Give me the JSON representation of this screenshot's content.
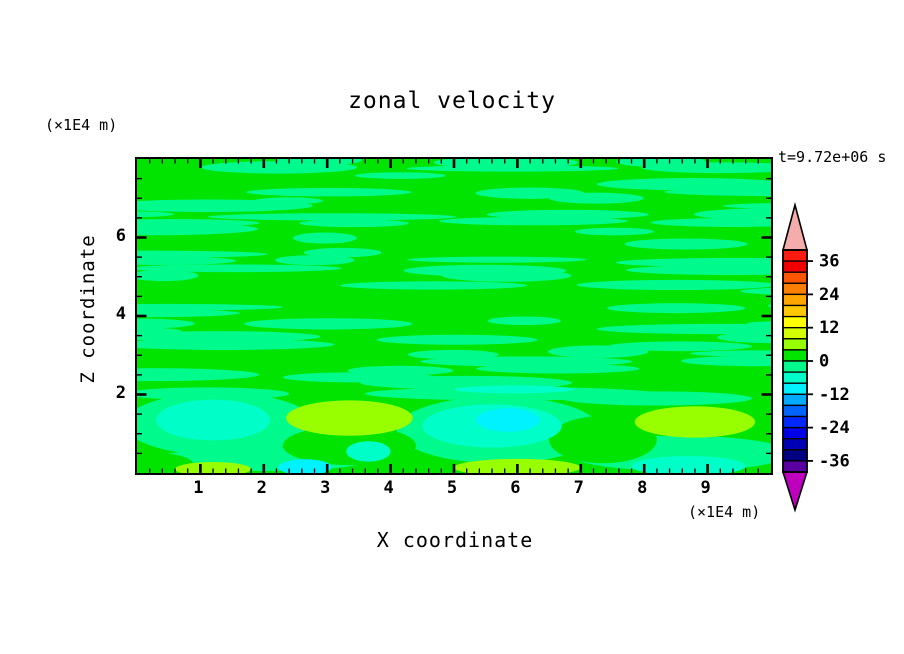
{
  "title": "zonal velocity",
  "timestamp": "t=9.72e+06 s",
  "axes": {
    "x_label": "X coordinate",
    "x_unit": "(×1E4 m)",
    "y_label": "Z coordinate",
    "y_unit": "(×1E4 m)",
    "x_ticks": [
      "1",
      "2",
      "3",
      "4",
      "5",
      "6",
      "7",
      "8",
      "9"
    ],
    "y_ticks": [
      "2",
      "4",
      "6"
    ],
    "x_range": [
      0,
      10
    ],
    "z_range": [
      0,
      8
    ],
    "x_minor_step": 0.2,
    "z_minor_step": 0.5
  },
  "colorbar": {
    "labels": [
      "36",
      "24",
      "12",
      "0",
      "-12",
      "-24",
      "-36"
    ],
    "level_min": -40,
    "level_max": 40,
    "level_step": 4,
    "cell_colors": [
      "#FB1B10",
      "#F00000",
      "#FF5500",
      "#FF8000",
      "#FFA500",
      "#FFC800",
      "#FFFF00",
      "#D4FF00",
      "#98FF00",
      "#00E400",
      "#00FA8C",
      "#00FFC8",
      "#00F2FF",
      "#00AAFF",
      "#0064FF",
      "#0028FF",
      "#0000E8",
      "#0000B4",
      "#000080",
      "#5A00A0"
    ],
    "over_color": "#F5ACAC",
    "under_color": "#BE00BE"
  },
  "chart_data": {
    "type": "heatmap",
    "title": "zonal velocity",
    "xlabel": "X coordinate (×1E4 m)",
    "ylabel": "Z coordinate (×1E4 m)",
    "time_annotation": "t=9.72e+06 s",
    "x_range": [
      0,
      10
    ],
    "z_range": [
      0,
      8
    ],
    "contour_levels": "filled contours every 4 from -40 to 40",
    "field_summary": "Field is dominated by weak values: green (0..4) and mint (-4..0) in thin wavy horizontal streaks above z=2; below z=2 broader anomalies: chartreuse (+4..8) blobs near (3.3,1.4) and (8.8,1.3), turquoise (-8..-4) blobs near (1.2,1.35) and (5.6,1.2) with cyan (-12..-8) core near (5.85,1.35), plus alternating chartreuse/cyan/turquoise strips along the bottom boundary.",
    "palette": {
      "green": "#00E400",
      "mint": "#00FA8C",
      "turquoise": "#00FFC8",
      "cyan": "#00F2FF",
      "chartreuse": "#98FF00"
    },
    "features": [
      {
        "shape": "ellipse",
        "x": 1.3,
        "z": 1.25,
        "rx": 1.5,
        "rz": 0.8,
        "color": "mint"
      },
      {
        "shape": "ellipse",
        "x": 5.7,
        "z": 1.1,
        "rx": 1.6,
        "rz": 0.85,
        "color": "mint"
      },
      {
        "shape": "ellipse",
        "x": 2.0,
        "z": 0.35,
        "rx": 1.7,
        "rz": 0.3,
        "color": "mint"
      },
      {
        "shape": "ellipse",
        "x": 8.55,
        "z": 0.5,
        "rx": 1.75,
        "rz": 0.45,
        "color": "mint"
      },
      {
        "shape": "ellipse",
        "x": 1.1,
        "z": 2.02,
        "rx": 1.3,
        "rz": 0.16,
        "color": "mint"
      },
      {
        "shape": "ellipse",
        "x": 5.9,
        "z": 2.02,
        "rx": 2.3,
        "rz": 0.17,
        "color": "mint"
      },
      {
        "shape": "ellipse",
        "x": 8.2,
        "z": 1.9,
        "rx": 1.5,
        "rz": 0.18,
        "color": "mint"
      },
      {
        "shape": "ellipse",
        "x": 0.35,
        "z": 0.2,
        "rx": 0.55,
        "rz": 0.3,
        "color": "green"
      },
      {
        "shape": "ellipse",
        "x": 3.35,
        "z": 0.7,
        "rx": 1.05,
        "rz": 0.5,
        "color": "green"
      },
      {
        "shape": "ellipse",
        "x": 7.35,
        "z": 0.85,
        "rx": 0.85,
        "rz": 0.6,
        "color": "green"
      },
      {
        "shape": "ellipse",
        "x": 1.2,
        "z": 1.35,
        "rx": 0.9,
        "rz": 0.52,
        "color": "turquoise"
      },
      {
        "shape": "ellipse",
        "x": 5.6,
        "z": 1.2,
        "rx": 1.1,
        "rz": 0.55,
        "color": "turquoise"
      },
      {
        "shape": "ellipse",
        "x": 3.65,
        "z": 0.55,
        "rx": 0.35,
        "rz": 0.26,
        "color": "turquoise"
      },
      {
        "shape": "ellipse",
        "x": 8.7,
        "z": 0.18,
        "rx": 0.9,
        "rz": 0.25,
        "color": "turquoise"
      },
      {
        "shape": "ellipse",
        "x": 5.95,
        "z": 2.13,
        "rx": 0.95,
        "rz": 0.1,
        "color": "turquoise"
      },
      {
        "shape": "ellipse",
        "x": 5.85,
        "z": 1.35,
        "rx": 0.5,
        "rz": 0.3,
        "color": "cyan"
      },
      {
        "shape": "ellipse",
        "x": 2.65,
        "z": 0.15,
        "rx": 0.42,
        "rz": 0.2,
        "color": "cyan"
      },
      {
        "shape": "ellipse",
        "x": 3.35,
        "z": 1.4,
        "rx": 1.0,
        "rz": 0.45,
        "color": "chartreuse"
      },
      {
        "shape": "ellipse",
        "x": 8.8,
        "z": 1.3,
        "rx": 0.95,
        "rz": 0.4,
        "color": "chartreuse"
      },
      {
        "shape": "ellipse",
        "x": 1.2,
        "z": 0.1,
        "rx": 0.6,
        "rz": 0.18,
        "color": "chartreuse"
      },
      {
        "shape": "ellipse",
        "x": 6.0,
        "z": 0.14,
        "rx": 1.0,
        "rz": 0.22,
        "color": "chartreuse"
      }
    ],
    "streak_texture": {
      "seed": 42,
      "region_z": [
        2.15,
        8
      ],
      "coverage": 0.62
    }
  }
}
